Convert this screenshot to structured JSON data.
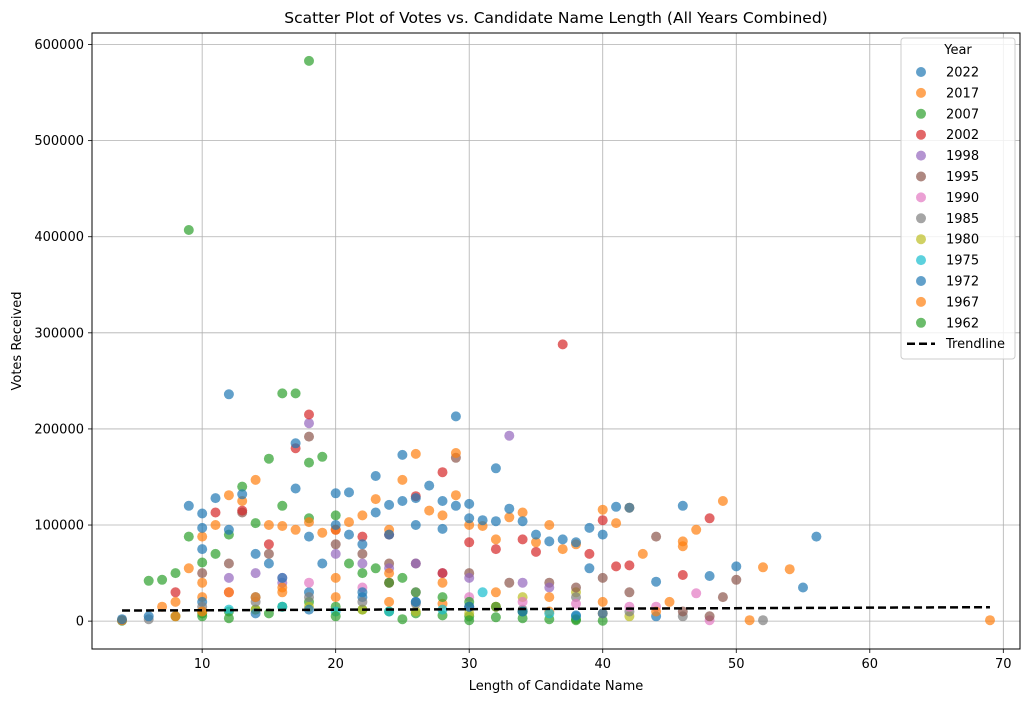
{
  "chart_data": {
    "type": "scatter",
    "title": "Scatter Plot of Votes vs. Candidate Name Length (All Years Combined)",
    "xlabel": "Length of Candidate Name",
    "ylabel": "Votes Received",
    "xlim": [
      1.75,
      71.25
    ],
    "ylim": [
      -29000,
      612000
    ],
    "xticks": [
      10,
      20,
      30,
      40,
      50,
      60,
      70
    ],
    "xtick_labels": [
      "10",
      "20",
      "30",
      "40",
      "50",
      "60",
      "70"
    ],
    "yticks": [
      0,
      100000,
      200000,
      300000,
      400000,
      500000,
      600000
    ],
    "ytick_labels": [
      "0",
      "100000",
      "200000",
      "300000",
      "400000",
      "500000",
      "600000"
    ],
    "grid": true,
    "legend": {
      "title": "Year",
      "placement": "upper-right"
    },
    "series": [
      {
        "name": "2022",
        "color": "#1f77b4",
        "points": [
          [
            4,
            2000
          ],
          [
            6,
            5000
          ],
          [
            9,
            120000
          ],
          [
            10,
            112000
          ],
          [
            10,
            97000
          ],
          [
            10,
            75000
          ],
          [
            11,
            128000
          ],
          [
            12,
            236000
          ],
          [
            12,
            95000
          ],
          [
            13,
            132000
          ],
          [
            14,
            70000
          ],
          [
            15,
            60000
          ],
          [
            16,
            45000
          ],
          [
            17,
            185000
          ],
          [
            17,
            138000
          ],
          [
            18,
            88000
          ],
          [
            19,
            60000
          ],
          [
            20,
            133000
          ],
          [
            20,
            100000
          ],
          [
            21,
            134000
          ],
          [
            21,
            90000
          ],
          [
            22,
            80000
          ],
          [
            23,
            151000
          ],
          [
            23,
            113000
          ],
          [
            24,
            121000
          ],
          [
            24,
            90000
          ],
          [
            25,
            173000
          ],
          [
            25,
            125000
          ],
          [
            26,
            128000
          ],
          [
            26,
            100000
          ],
          [
            27,
            141000
          ],
          [
            28,
            125000
          ],
          [
            28,
            96000
          ],
          [
            29,
            213000
          ],
          [
            29,
            120000
          ],
          [
            30,
            122000
          ],
          [
            30,
            107000
          ],
          [
            31,
            105000
          ],
          [
            32,
            159000
          ],
          [
            32,
            104000
          ],
          [
            33,
            117000
          ],
          [
            34,
            104000
          ],
          [
            35,
            90000
          ],
          [
            36,
            83000
          ],
          [
            37,
            85000
          ],
          [
            38,
            82000
          ],
          [
            39,
            97000
          ],
          [
            40,
            90000
          ],
          [
            41,
            119000
          ],
          [
            42,
            118000
          ],
          [
            44,
            41000
          ],
          [
            46,
            120000
          ],
          [
            48,
            47000
          ],
          [
            50,
            57000
          ],
          [
            55,
            35000
          ],
          [
            56,
            88000
          ],
          [
            22,
            30000
          ],
          [
            26,
            20000
          ],
          [
            30,
            15000
          ],
          [
            34,
            10000
          ],
          [
            38,
            6000
          ],
          [
            18,
            12000
          ],
          [
            14,
            8000
          ]
        ]
      },
      {
        "name": "2017",
        "color": "#ff7f0e",
        "points": [
          [
            4,
            1000
          ],
          [
            7,
            15000
          ],
          [
            8,
            20000
          ],
          [
            9,
            55000
          ],
          [
            10,
            88000
          ],
          [
            11,
            100000
          ],
          [
            12,
            131000
          ],
          [
            13,
            125000
          ],
          [
            14,
            147000
          ],
          [
            15,
            100000
          ],
          [
            16,
            99000
          ],
          [
            17,
            95000
          ],
          [
            18,
            103000
          ],
          [
            19,
            92000
          ],
          [
            20,
            95000
          ],
          [
            21,
            103000
          ],
          [
            22,
            110000
          ],
          [
            23,
            127000
          ],
          [
            24,
            95000
          ],
          [
            25,
            147000
          ],
          [
            26,
            174000
          ],
          [
            27,
            115000
          ],
          [
            28,
            110000
          ],
          [
            29,
            175000
          ],
          [
            29,
            131000
          ],
          [
            30,
            100000
          ],
          [
            31,
            99000
          ],
          [
            32,
            85000
          ],
          [
            33,
            108000
          ],
          [
            34,
            113000
          ],
          [
            35,
            82000
          ],
          [
            36,
            100000
          ],
          [
            37,
            75000
          ],
          [
            38,
            80000
          ],
          [
            40,
            116000
          ],
          [
            41,
            102000
          ],
          [
            42,
            118000
          ],
          [
            43,
            70000
          ],
          [
            46,
            83000
          ],
          [
            46,
            78000
          ],
          [
            47,
            95000
          ],
          [
            49,
            125000
          ],
          [
            51,
            1000
          ],
          [
            52,
            56000
          ],
          [
            54,
            54000
          ],
          [
            69,
            1000
          ],
          [
            10,
            40000
          ],
          [
            12,
            30000
          ],
          [
            14,
            25000
          ],
          [
            16,
            35000
          ],
          [
            20,
            45000
          ],
          [
            24,
            50000
          ],
          [
            28,
            40000
          ],
          [
            32,
            30000
          ],
          [
            36,
            25000
          ],
          [
            40,
            20000
          ],
          [
            44,
            10000
          ],
          [
            8,
            5000
          ],
          [
            10,
            10000
          ]
        ]
      },
      {
        "name": "2007",
        "color": "#2ca02c",
        "points": [
          [
            6,
            42000
          ],
          [
            7,
            43000
          ],
          [
            8,
            50000
          ],
          [
            9,
            407000
          ],
          [
            9,
            88000
          ],
          [
            10,
            61000
          ],
          [
            11,
            70000
          ],
          [
            12,
            90000
          ],
          [
            13,
            140000
          ],
          [
            14,
            102000
          ],
          [
            15,
            169000
          ],
          [
            16,
            237000
          ],
          [
            16,
            120000
          ],
          [
            17,
            237000
          ],
          [
            18,
            583000
          ],
          [
            18,
            165000
          ],
          [
            18,
            107000
          ],
          [
            19,
            171000
          ],
          [
            20,
            110000
          ],
          [
            21,
            60000
          ],
          [
            22,
            50000
          ],
          [
            23,
            55000
          ],
          [
            24,
            40000
          ],
          [
            25,
            45000
          ],
          [
            26,
            30000
          ],
          [
            28,
            25000
          ],
          [
            30,
            20000
          ],
          [
            32,
            15000
          ],
          [
            34,
            10000
          ],
          [
            10,
            5000
          ],
          [
            12,
            3000
          ],
          [
            15,
            8000
          ],
          [
            20,
            5000
          ],
          [
            25,
            2000
          ],
          [
            30,
            1000
          ],
          [
            38,
            2000
          ]
        ]
      },
      {
        "name": "2002",
        "color": "#d62728",
        "points": [
          [
            8,
            30000
          ],
          [
            11,
            113000
          ],
          [
            13,
            115000
          ],
          [
            15,
            80000
          ],
          [
            17,
            180000
          ],
          [
            18,
            215000
          ],
          [
            20,
            95000
          ],
          [
            22,
            88000
          ],
          [
            24,
            90000
          ],
          [
            26,
            130000
          ],
          [
            28,
            155000
          ],
          [
            30,
            82000
          ],
          [
            32,
            75000
          ],
          [
            34,
            85000
          ],
          [
            35,
            72000
          ],
          [
            37,
            288000
          ],
          [
            39,
            70000
          ],
          [
            40,
            105000
          ],
          [
            41,
            57000
          ],
          [
            42,
            58000
          ],
          [
            46,
            48000
          ],
          [
            48,
            107000
          ],
          [
            28,
            50000
          ],
          [
            24,
            40000
          ]
        ]
      },
      {
        "name": "1998",
        "color": "#9467bd",
        "points": [
          [
            12,
            45000
          ],
          [
            14,
            50000
          ],
          [
            16,
            40000
          ],
          [
            18,
            206000
          ],
          [
            20,
            70000
          ],
          [
            22,
            60000
          ],
          [
            24,
            55000
          ],
          [
            26,
            60000
          ],
          [
            28,
            50000
          ],
          [
            30,
            45000
          ],
          [
            33,
            193000
          ],
          [
            34,
            40000
          ],
          [
            36,
            35000
          ]
        ]
      },
      {
        "name": "1995",
        "color": "#8c564b",
        "points": [
          [
            10,
            50000
          ],
          [
            12,
            60000
          ],
          [
            13,
            113000
          ],
          [
            15,
            70000
          ],
          [
            18,
            192000
          ],
          [
            20,
            80000
          ],
          [
            22,
            70000
          ],
          [
            24,
            60000
          ],
          [
            26,
            60000
          ],
          [
            29,
            170000
          ],
          [
            30,
            50000
          ],
          [
            33,
            40000
          ],
          [
            36,
            40000
          ],
          [
            38,
            35000
          ],
          [
            40,
            45000
          ],
          [
            42,
            30000
          ],
          [
            44,
            88000
          ],
          [
            46,
            10000
          ],
          [
            48,
            5000
          ],
          [
            50,
            43000
          ],
          [
            49,
            25000
          ]
        ]
      },
      {
        "name": "1990",
        "color": "#e377c2",
        "points": [
          [
            12,
            30000
          ],
          [
            16,
            45000
          ],
          [
            18,
            40000
          ],
          [
            22,
            35000
          ],
          [
            26,
            30000
          ],
          [
            30,
            25000
          ],
          [
            34,
            20000
          ],
          [
            38,
            18000
          ],
          [
            42,
            15000
          ],
          [
            44,
            15000
          ],
          [
            47,
            29000
          ],
          [
            48,
            1000
          ]
        ]
      },
      {
        "name": "1985",
        "color": "#7f7f7f",
        "points": [
          [
            4,
            1000
          ],
          [
            6,
            2000
          ],
          [
            10,
            15000
          ],
          [
            14,
            20000
          ],
          [
            18,
            25000
          ],
          [
            22,
            20000
          ],
          [
            26,
            18000
          ],
          [
            30,
            15000
          ],
          [
            34,
            12000
          ],
          [
            38,
            25000
          ],
          [
            42,
            10000
          ],
          [
            46,
            5000
          ],
          [
            52,
            1000
          ]
        ]
      },
      {
        "name": "1980",
        "color": "#bcbd22",
        "points": [
          [
            10,
            10000
          ],
          [
            14,
            12000
          ],
          [
            18,
            15000
          ],
          [
            22,
            12000
          ],
          [
            26,
            10000
          ],
          [
            30,
            8000
          ],
          [
            34,
            25000
          ],
          [
            38,
            30000
          ],
          [
            42,
            5000
          ]
        ]
      },
      {
        "name": "1975",
        "color": "#17becf",
        "points": [
          [
            12,
            12000
          ],
          [
            16,
            15000
          ],
          [
            20,
            10000
          ],
          [
            24,
            10000
          ],
          [
            28,
            12000
          ],
          [
            31,
            30000
          ],
          [
            36,
            8000
          ],
          [
            38,
            5000
          ]
        ]
      },
      {
        "name": "1972",
        "color": "#1f77b4",
        "points": [
          [
            10,
            20000
          ],
          [
            14,
            25000
          ],
          [
            18,
            30000
          ],
          [
            22,
            25000
          ],
          [
            26,
            20000
          ],
          [
            30,
            15000
          ],
          [
            34,
            10000
          ],
          [
            39,
            55000
          ],
          [
            40,
            8000
          ],
          [
            44,
            5000
          ]
        ]
      },
      {
        "name": "1967",
        "color": "#ff7f0e",
        "points": [
          [
            10,
            25000
          ],
          [
            12,
            30000
          ],
          [
            16,
            30000
          ],
          [
            20,
            25000
          ],
          [
            24,
            20000
          ],
          [
            28,
            18000
          ],
          [
            32,
            15000
          ],
          [
            36,
            10000
          ],
          [
            40,
            8000
          ],
          [
            45,
            20000
          ]
        ]
      },
      {
        "name": "1962",
        "color": "#2ca02c",
        "points": [
          [
            4,
            500
          ],
          [
            8,
            5000
          ],
          [
            10,
            8000
          ],
          [
            12,
            10000
          ],
          [
            14,
            12000
          ],
          [
            16,
            15000
          ],
          [
            18,
            20000
          ],
          [
            20,
            15000
          ],
          [
            22,
            12000
          ],
          [
            24,
            10000
          ],
          [
            26,
            8000
          ],
          [
            28,
            6000
          ],
          [
            30,
            5000
          ],
          [
            32,
            4000
          ],
          [
            34,
            3000
          ],
          [
            36,
            2000
          ],
          [
            38,
            1000
          ],
          [
            40,
            500
          ]
        ]
      }
    ],
    "trendline": {
      "name": "Trendline",
      "color": "#000000",
      "x": [
        4,
        69
      ],
      "y": [
        11000,
        14500
      ],
      "style": "dashed"
    }
  }
}
